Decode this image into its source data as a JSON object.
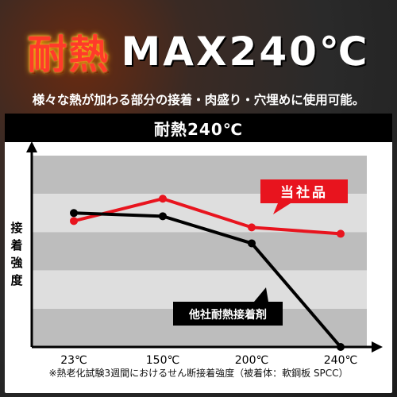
{
  "header": {
    "title_red": "耐熱",
    "title_white": "MAX240℃",
    "subtitle": "様々な熱が加わる部分の接着・肉盛り・穴埋めに使用可能。"
  },
  "chart_data": {
    "type": "line",
    "title": "耐熱240℃",
    "xlabel": "",
    "ylabel": "接着強度",
    "categories": [
      "23℃",
      "150℃",
      "200℃",
      "240℃"
    ],
    "series": [
      {
        "name": "当社品",
        "values": [
          0.79,
          0.93,
          0.75,
          0.71
        ],
        "color": "#e8141e",
        "label_color": "#ffffff"
      },
      {
        "name": "他社耐熱接着剤",
        "values": [
          0.84,
          0.82,
          0.65,
          0.0
        ],
        "color": "#000000",
        "label_color": "#ffffff"
      }
    ],
    "ylim": [
      0,
      1.2
    ],
    "yticks_shown": false,
    "grid": "alternating horizontal bands"
  },
  "footnote": "※熱老化試験3週間におけるせん断接着強度（被着体：軟鋼板 SPCC）"
}
